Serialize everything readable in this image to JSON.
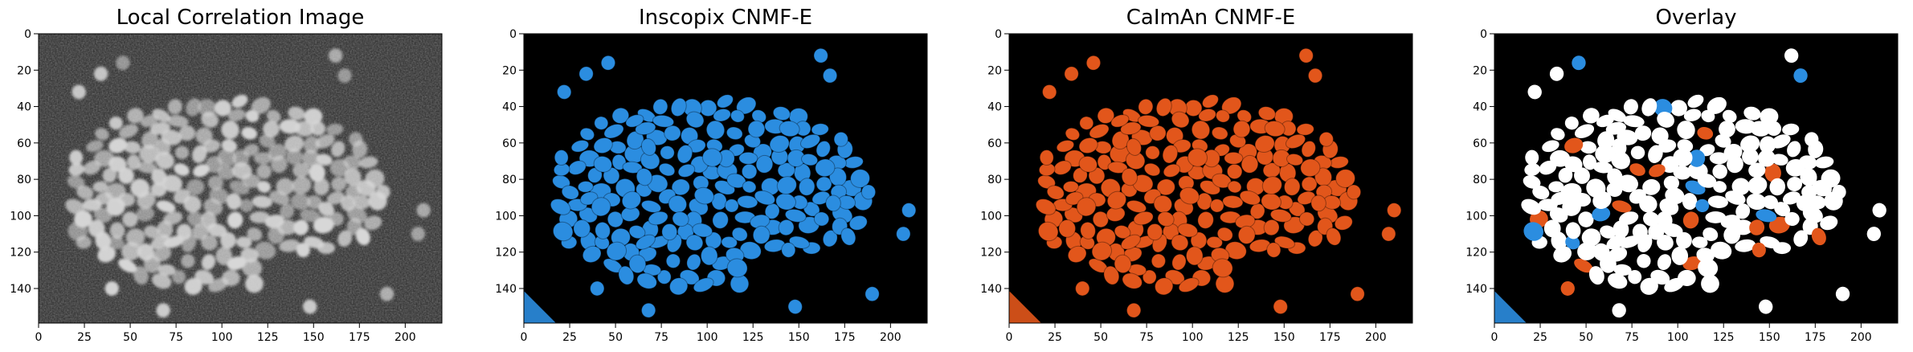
{
  "panels": [
    {
      "title": "Local Correlation Image",
      "fill_color": "#d8d8d8",
      "background": "#2a2a2a",
      "x_ticks": [
        "0",
        "25",
        "50",
        "75",
        "100",
        "125",
        "150",
        "175",
        "200"
      ],
      "y_ticks": [
        "0",
        "20",
        "40",
        "60",
        "80",
        "100",
        "120",
        "140"
      ]
    },
    {
      "title": "Inscopix CNMF-E",
      "fill_color": "#2b8de0",
      "background": "#000000",
      "x_ticks": [
        "0",
        "25",
        "50",
        "75",
        "100",
        "125",
        "150",
        "175",
        "200"
      ],
      "y_ticks": [
        "0",
        "20",
        "40",
        "60",
        "80",
        "100",
        "120",
        "140"
      ]
    },
    {
      "title": "CaImAn CNMF-E",
      "fill_color": "#e2561b",
      "background": "#000000",
      "x_ticks": [
        "0",
        "25",
        "50",
        "75",
        "100",
        "125",
        "150",
        "175",
        "200"
      ],
      "y_ticks": [
        "0",
        "20",
        "40",
        "60",
        "80",
        "100",
        "120",
        "140"
      ]
    },
    {
      "title": "Overlay",
      "fill_color": "#ffffff",
      "background": "#000000",
      "x_ticks": [
        "0",
        "25",
        "50",
        "75",
        "100",
        "125",
        "150",
        "175",
        "200"
      ],
      "y_ticks": [
        "0",
        "20",
        "40",
        "60",
        "80",
        "100",
        "120",
        "140"
      ]
    }
  ],
  "colors": {
    "inscopix": "#2b8de0",
    "caiman": "#e2561b",
    "overlay": "#ffffff"
  }
}
